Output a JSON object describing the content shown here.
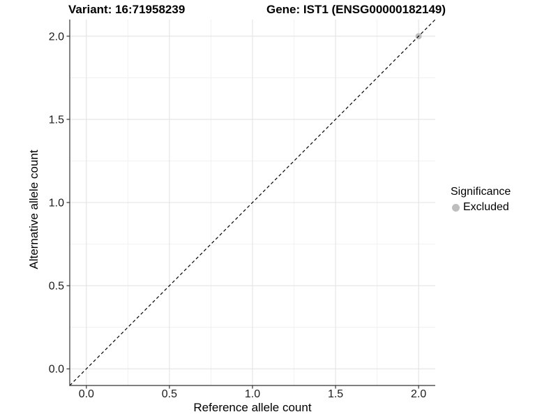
{
  "chart_data": {
    "type": "scatter",
    "title_left": "Variant: 16:71958239",
    "title_right": "Gene: IST1 (ENSG00000182149)",
    "xlabel": "Reference allele count",
    "ylabel": "Alternative allele count",
    "xlim": [
      -0.1,
      2.1
    ],
    "ylim": [
      -0.1,
      2.1
    ],
    "x_tick_labels": [
      "0.0",
      "0.5",
      "1.0",
      "1.5",
      "2.0"
    ],
    "y_tick_labels": [
      "0.0",
      "0.5",
      "1.0",
      "1.5",
      "2.0"
    ],
    "grid": {
      "major": true,
      "minor": true
    },
    "points": [
      {
        "x": 2,
        "y": 2,
        "significance": "Excluded",
        "color": "#bebebe"
      }
    ],
    "reference_line": {
      "equation": "y = x",
      "style": "dashed",
      "color": "#000000",
      "from": [
        -0.1,
        -0.1
      ],
      "to": [
        2.1,
        2.1
      ]
    },
    "legend": {
      "title": "Significance",
      "position": "right",
      "entries": [
        {
          "label": "Excluded",
          "color": "#bebebe",
          "marker": "circle"
        }
      ]
    }
  }
}
